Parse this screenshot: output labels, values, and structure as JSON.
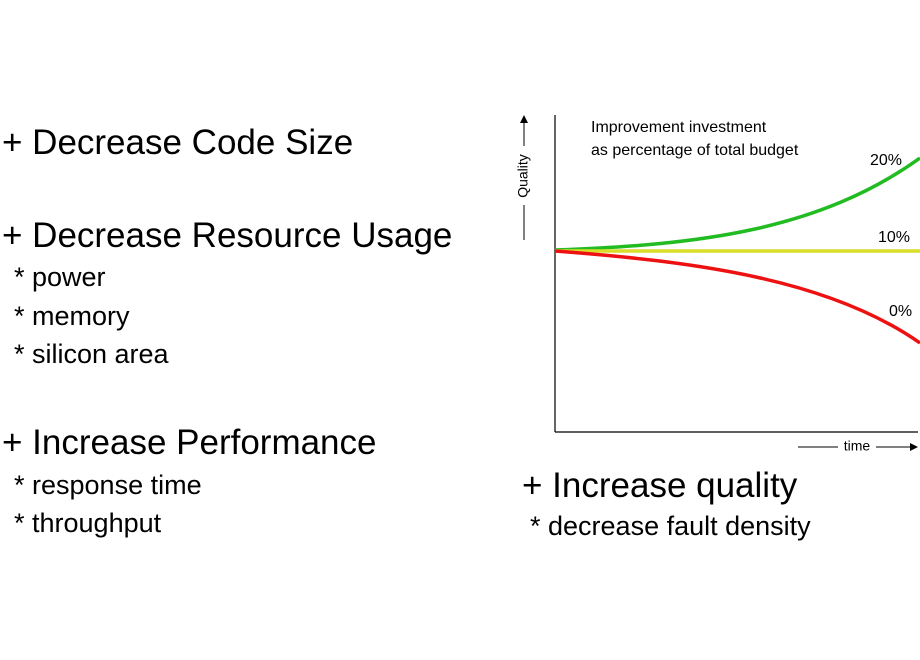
{
  "left_list": [
    {
      "heading": "+ Decrease Code Size",
      "items": []
    },
    {
      "heading": "+ Decrease Resource Usage",
      "items": [
        "* power",
        "* memory",
        "* silicon area"
      ]
    },
    {
      "heading": "+ Increase Performance",
      "items": [
        "* response time",
        "* throughput"
      ]
    }
  ],
  "right_list": {
    "heading": "+ Increase quality",
    "items": [
      "* decrease fault density"
    ]
  },
  "diagram": {
    "y_axis_label": "Quality",
    "x_axis_label": "time",
    "legend_line1": "Improvement investment",
    "legend_line2": "as percentage of total budget",
    "curves": [
      {
        "label": "20%",
        "color": "#22bb22"
      },
      {
        "label": "10%",
        "color": "#d8de2a"
      },
      {
        "label": "0%",
        "color": "#ee1111"
      }
    ]
  }
}
